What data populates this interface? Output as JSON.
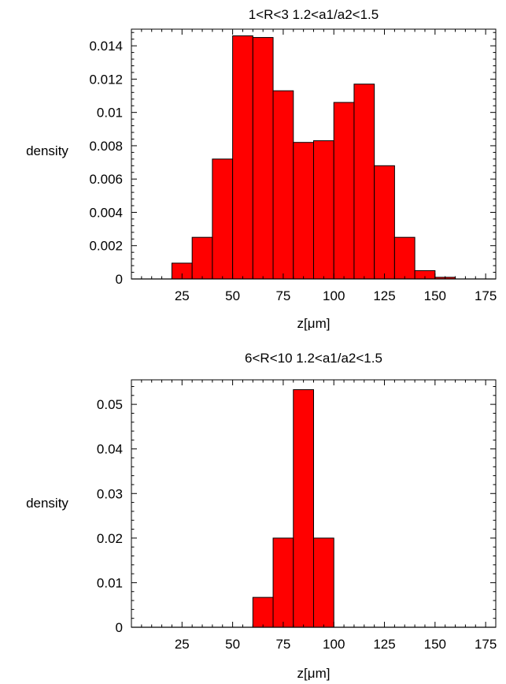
{
  "chart_data": [
    {
      "type": "bar",
      "title": "1<R<3   1.2<a1/a2<1.5",
      "xlabel": "z[μm]",
      "ylabel": "density",
      "bin_edges": [
        10,
        20,
        30,
        40,
        50,
        60,
        70,
        80,
        90,
        100,
        110,
        120,
        130,
        140,
        150,
        160,
        170,
        180
      ],
      "values": [
        0,
        0.00095,
        0.0025,
        0.0072,
        0.0146,
        0.0145,
        0.0113,
        0.0082,
        0.0083,
        0.0106,
        0.0117,
        0.0068,
        0.0025,
        0.0005,
        0.0001,
        0,
        0
      ],
      "xlim": [
        0,
        180
      ],
      "ylim": [
        0,
        0.015
      ],
      "x_ticks": [
        25,
        50,
        75,
        100,
        125,
        150,
        175
      ],
      "x_tick_labels": [
        "25",
        "50",
        "75",
        "100",
        "125",
        "150",
        "175"
      ],
      "y_ticks": [
        0,
        0.002,
        0.004,
        0.006,
        0.008,
        0.01,
        0.012,
        0.014
      ],
      "y_tick_labels": [
        "0",
        "0.002",
        "0.004",
        "0.006",
        "0.008",
        "0.01",
        "0.012",
        "0.014"
      ],
      "bar_color": "#ff0000",
      "grid": false
    },
    {
      "type": "bar",
      "title": "6<R<10   1.2<a1/a2<1.5",
      "xlabel": "z[μm]",
      "ylabel": "density",
      "bin_edges": [
        10,
        20,
        30,
        40,
        50,
        60,
        70,
        80,
        90,
        100,
        110,
        120,
        130,
        140,
        150,
        160,
        170,
        180
      ],
      "values": [
        0,
        0,
        0,
        0,
        0,
        0.0067,
        0.02,
        0.0533,
        0.02,
        0,
        0,
        0,
        0,
        0,
        0,
        0,
        0
      ],
      "xlim": [
        0,
        180
      ],
      "ylim": [
        0,
        0.0555
      ],
      "x_ticks": [
        25,
        50,
        75,
        100,
        125,
        150,
        175
      ],
      "x_tick_labels": [
        "25",
        "50",
        "75",
        "100",
        "125",
        "150",
        "175"
      ],
      "y_ticks": [
        0,
        0.01,
        0.02,
        0.03,
        0.04,
        0.05
      ],
      "y_tick_labels": [
        "0",
        "0.01",
        "0.02",
        "0.03",
        "0.04",
        "0.05"
      ],
      "bar_color": "#ff0000",
      "grid": false
    }
  ]
}
